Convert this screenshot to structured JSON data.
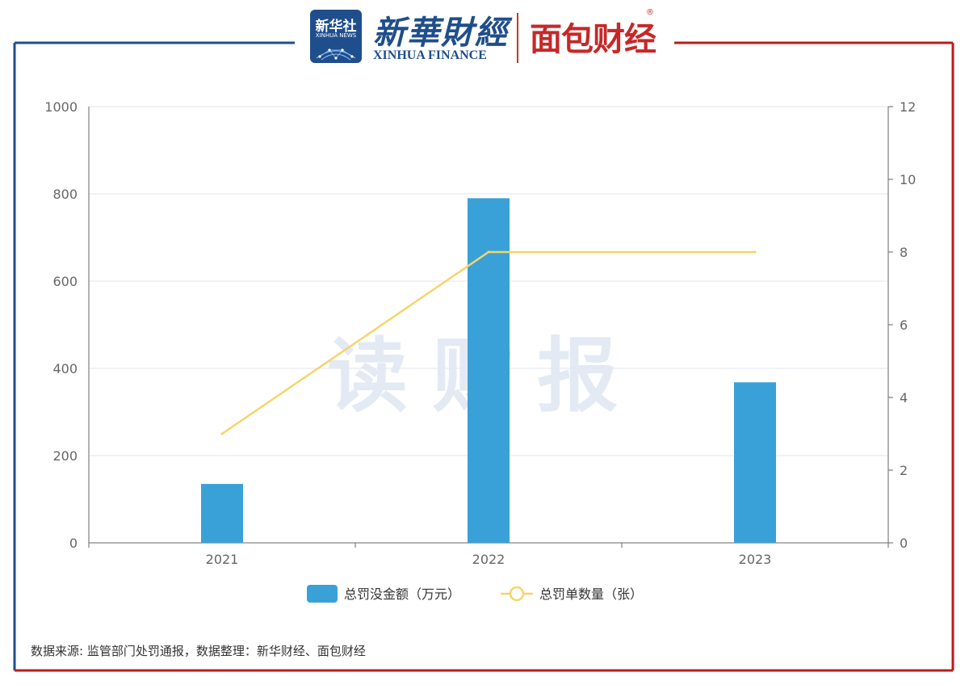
{
  "header": {
    "xinhua_news_cn": "新华社",
    "xinhua_news_en": "XINHUA NEWS",
    "xinhua_finance_cn": "新華財經",
    "xinhua_finance_en": "XINHUA FINANCE",
    "mianbao_logo": "面包财经",
    "registered_mark": "®"
  },
  "watermark": "读财报",
  "footer": {
    "source": "数据来源: 监管部门处罚通报，数据整理：新华财经、面包财经"
  },
  "colors": {
    "bar": "#3aa0d8",
    "line": "#f7d46a",
    "frame_left": "#1f4e8c",
    "frame_right": "#b71c1c",
    "grid": "#e3e6f0",
    "axis": "#666666"
  },
  "chart_data": {
    "type": "bar",
    "categories": [
      "2021",
      "2022",
      "2023"
    ],
    "series": [
      {
        "name": "总罚没金额（万元）",
        "type": "bar",
        "axis": "left",
        "values": [
          135,
          790,
          368
        ]
      },
      {
        "name": "总罚单数量（张）",
        "type": "line",
        "axis": "right",
        "values": [
          3,
          8,
          8
        ]
      }
    ],
    "y_left": {
      "min": 0,
      "max": 1000,
      "ticks": [
        0,
        200,
        400,
        600,
        800,
        1000
      ]
    },
    "y_right": {
      "min": 0,
      "max": 12,
      "ticks": [
        0,
        2,
        4,
        6,
        8,
        10,
        12
      ]
    },
    "grid": true,
    "legend_position": "bottom-center"
  }
}
